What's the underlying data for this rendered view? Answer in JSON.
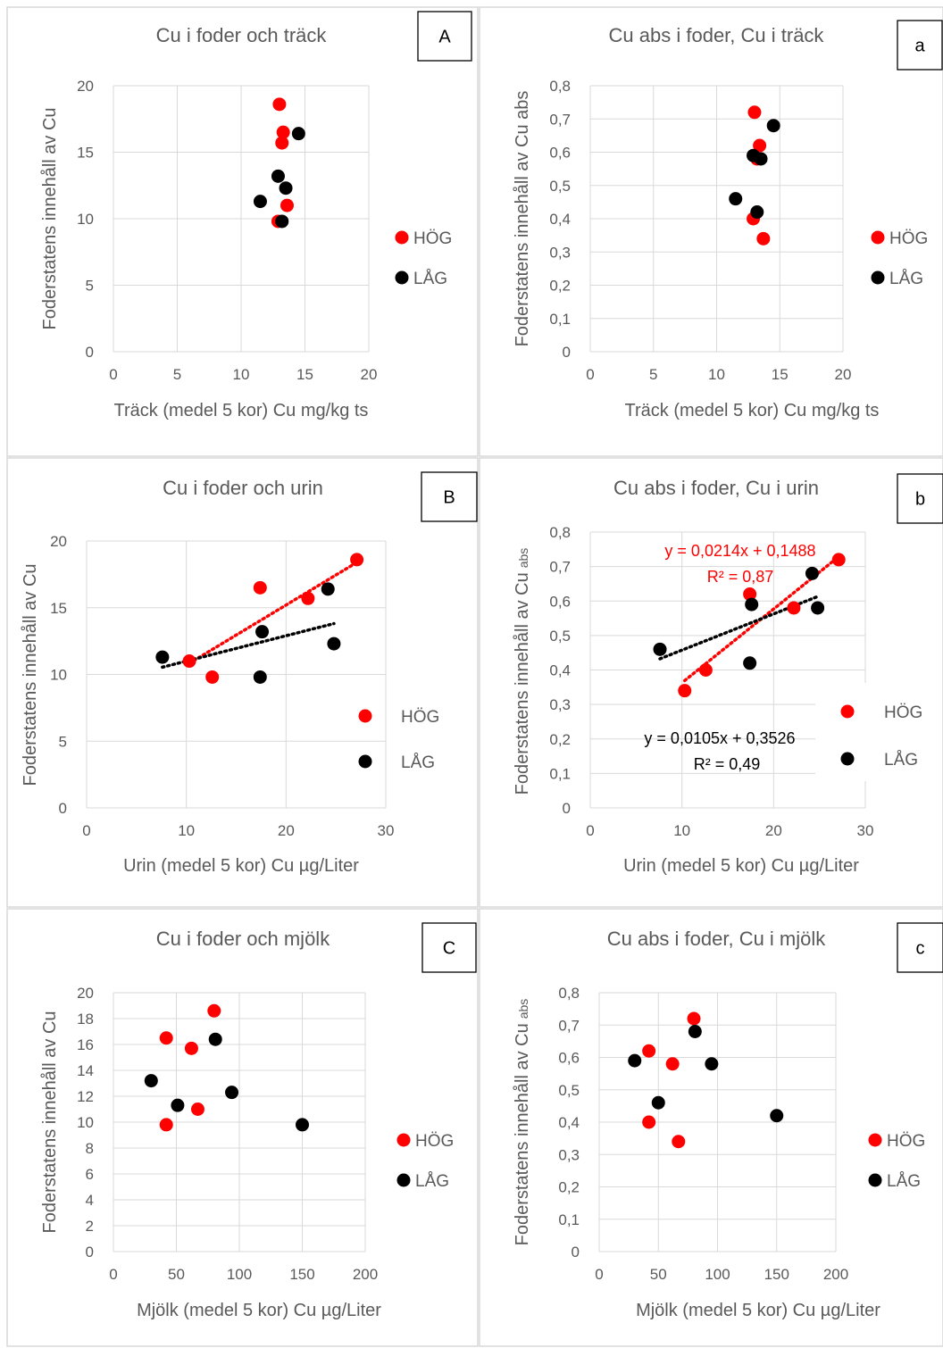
{
  "legend": {
    "hog": "HÖG",
    "lag": "LÅG"
  },
  "colors": {
    "hog": "#ff0000",
    "lag": "#000000",
    "axis_text": "#595959",
    "grid": "#d9d9d9",
    "border": "#d9d9d9"
  },
  "chart_data": [
    {
      "id": "A",
      "panel_label": "A",
      "type": "scatter",
      "title": "Cu i foder och träck",
      "xlabel": "Träck (medel 5 kor) Cu mg/kg ts",
      "ylabel": "Foderstatens innehåll av Cu",
      "xlim": [
        0,
        20
      ],
      "ylim": [
        0,
        20
      ],
      "xticks": [
        0,
        5,
        10,
        15,
        20
      ],
      "yticks": [
        0,
        5,
        10,
        15,
        20
      ],
      "xtick_labels": [
        "0",
        "5",
        "10",
        "15",
        "20"
      ],
      "ytick_labels": [
        "0",
        "5",
        "10",
        "15",
        "20"
      ],
      "grid": "vertical and horizontal major",
      "legend_position": "right",
      "series": [
        {
          "name": "HÖG",
          "x": [
            13.0,
            13.3,
            13.2,
            13.6,
            12.9
          ],
          "y": [
            18.6,
            16.5,
            15.7,
            11.0,
            9.8
          ]
        },
        {
          "name": "LÅG",
          "x": [
            14.5,
            12.9,
            13.5,
            11.5,
            13.2
          ],
          "y": [
            16.4,
            13.2,
            12.3,
            11.3,
            9.8
          ]
        }
      ]
    },
    {
      "id": "a",
      "panel_label": "a",
      "type": "scatter",
      "title": "Cu abs i foder, Cu i träck",
      "xlabel": "Träck (medel 5 kor) Cu mg/kg ts",
      "ylabel": "Foderstatens innehåll av Cu abs",
      "xlim": [
        0,
        20
      ],
      "ylim": [
        0,
        0.8
      ],
      "xticks": [
        0,
        5,
        10,
        15,
        20
      ],
      "yticks": [
        0,
        0.1,
        0.2,
        0.3,
        0.4,
        0.5,
        0.6,
        0.7,
        0.8
      ],
      "xtick_labels": [
        "0",
        "5",
        "10",
        "15",
        "20"
      ],
      "ytick_labels": [
        "0",
        "0,1",
        "0,2",
        "0,3",
        "0,4",
        "0,5",
        "0,6",
        "0,7",
        "0,8"
      ],
      "grid": "vertical and horizontal major",
      "legend_position": "right",
      "series": [
        {
          "name": "HÖG",
          "x": [
            13.0,
            13.4,
            13.2,
            13.7,
            12.9
          ],
          "y": [
            0.72,
            0.62,
            0.58,
            0.34,
            0.4
          ]
        },
        {
          "name": "LÅG",
          "x": [
            14.5,
            12.9,
            13.5,
            11.5,
            13.2
          ],
          "y": [
            0.68,
            0.59,
            0.58,
            0.46,
            0.42
          ]
        }
      ]
    },
    {
      "id": "B",
      "panel_label": "B",
      "type": "scatter",
      "title": "Cu i foder och urin",
      "xlabel": "Urin (medel 5 kor) Cu µg/Liter",
      "ylabel": "Foderstatens innehåll av Cu",
      "xlim": [
        0,
        30
      ],
      "ylim": [
        0,
        20
      ],
      "xticks": [
        0,
        10,
        20,
        30
      ],
      "yticks": [
        0,
        5,
        10,
        15,
        20
      ],
      "xtick_labels": [
        "0",
        "10",
        "20",
        "30"
      ],
      "ytick_labels": [
        "0",
        "5",
        "10",
        "15",
        "20"
      ],
      "grid": "vertical and horizontal major",
      "legend_position": "right",
      "series": [
        {
          "name": "HÖG",
          "x": [
            27.1,
            17.4,
            22.2,
            10.3,
            12.6
          ],
          "y": [
            18.6,
            16.5,
            15.7,
            11.0,
            9.8
          ]
        },
        {
          "name": "LÅG",
          "x": [
            24.2,
            17.6,
            24.8,
            7.6,
            17.4
          ],
          "y": [
            16.4,
            13.2,
            12.3,
            11.3,
            9.8
          ]
        }
      ],
      "trendlines": [
        {
          "series": "HÖG",
          "x_range": [
            10.3,
            27.1
          ],
          "slope": 0.45,
          "intercept": 6.2
        },
        {
          "series": "LÅG",
          "x_range": [
            7.6,
            24.8
          ],
          "slope": 0.19,
          "intercept": 9.1
        }
      ]
    },
    {
      "id": "b",
      "panel_label": "b",
      "type": "scatter",
      "title": "Cu abs i foder, Cu i urin",
      "xlabel": "Urin (medel 5 kor) Cu µg/Liter",
      "ylabel": "Foderstatens innehåll av Cu",
      "ylabel_suffix": "abs",
      "xlim": [
        0,
        30
      ],
      "ylim": [
        0,
        0.8
      ],
      "xticks": [
        0,
        10,
        20,
        30
      ],
      "yticks": [
        0,
        0.1,
        0.2,
        0.3,
        0.4,
        0.5,
        0.6,
        0.7,
        0.8
      ],
      "xtick_labels": [
        "0",
        "10",
        "20",
        "30"
      ],
      "ytick_labels": [
        "0",
        "0,1",
        "0,2",
        "0,3",
        "0,4",
        "0,5",
        "0,6",
        "0,7",
        "0,8"
      ],
      "grid": "vertical and horizontal major",
      "legend_position": "right",
      "series": [
        {
          "name": "HÖG",
          "x": [
            27.1,
            17.4,
            22.2,
            10.3,
            12.6
          ],
          "y": [
            0.72,
            0.62,
            0.58,
            0.34,
            0.4
          ]
        },
        {
          "name": "LÅG",
          "x": [
            24.2,
            17.6,
            24.8,
            7.6,
            17.4
          ],
          "y": [
            0.68,
            0.59,
            0.58,
            0.46,
            0.42
          ]
        }
      ],
      "trendlines": [
        {
          "series": "HÖG",
          "x_range": [
            10.3,
            27.1
          ],
          "slope": 0.0214,
          "intercept": 0.1488
        },
        {
          "series": "LÅG",
          "x_range": [
            7.6,
            24.8
          ],
          "slope": 0.0105,
          "intercept": 0.3526
        }
      ],
      "annotations": [
        {
          "series": "HÖG",
          "equation": "y = 0,0214x + 0,1488",
          "r2": "R² = 0,87"
        },
        {
          "series": "LÅG",
          "equation": "y = 0,0105x + 0,3526",
          "r2": "R² = 0,49"
        }
      ]
    },
    {
      "id": "C",
      "panel_label": "C",
      "type": "scatter",
      "title": "Cu i foder och mjölk",
      "xlabel": "Mjölk (medel 5 kor) Cu µg/Liter",
      "ylabel": "Foderstatens innehåll av Cu",
      "xlim": [
        0,
        200
      ],
      "ylim": [
        0,
        20
      ],
      "xticks": [
        0,
        50,
        100,
        150,
        200
      ],
      "yticks": [
        0,
        2,
        4,
        6,
        8,
        10,
        12,
        14,
        16,
        18,
        20
      ],
      "xtick_labels": [
        "0",
        "50",
        "100",
        "150",
        "200"
      ],
      "ytick_labels": [
        "0",
        "2",
        "4",
        "6",
        "8",
        "10",
        "12",
        "14",
        "16",
        "18",
        "20"
      ],
      "grid": "vertical and horizontal major",
      "legend_position": "right",
      "series": [
        {
          "name": "HÖG",
          "x": [
            80,
            42,
            62,
            67,
            42
          ],
          "y": [
            18.6,
            16.5,
            15.7,
            11.0,
            9.8
          ]
        },
        {
          "name": "LÅG",
          "x": [
            81,
            30,
            94,
            51,
            150
          ],
          "y": [
            16.4,
            13.2,
            12.3,
            11.3,
            9.8
          ]
        }
      ]
    },
    {
      "id": "c",
      "panel_label": "c",
      "type": "scatter",
      "title": "Cu abs i foder, Cu i mjölk",
      "xlabel": "Mjölk (medel 5 kor) Cu µg/Liter",
      "ylabel": "Foderstatens innehåll av Cu",
      "ylabel_suffix": "abs",
      "xlim": [
        0,
        200
      ],
      "ylim": [
        0,
        0.8
      ],
      "xticks": [
        0,
        50,
        100,
        150,
        200
      ],
      "yticks": [
        0,
        0.1,
        0.2,
        0.3,
        0.4,
        0.5,
        0.6,
        0.7,
        0.8
      ],
      "xtick_labels": [
        "0",
        "50",
        "100",
        "150",
        "200"
      ],
      "ytick_labels": [
        "0",
        "0,1",
        "0,2",
        "0,3",
        "0,4",
        "0,5",
        "0,6",
        "0,7",
        "0,8"
      ],
      "grid": "vertical and horizontal major",
      "legend_position": "right",
      "series": [
        {
          "name": "HÖG",
          "x": [
            80,
            42,
            62,
            42,
            67
          ],
          "y": [
            0.72,
            0.62,
            0.58,
            0.4,
            0.34
          ]
        },
        {
          "name": "LÅG",
          "x": [
            81,
            30,
            95,
            50,
            150
          ],
          "y": [
            0.68,
            0.59,
            0.58,
            0.46,
            0.42
          ]
        }
      ]
    }
  ]
}
